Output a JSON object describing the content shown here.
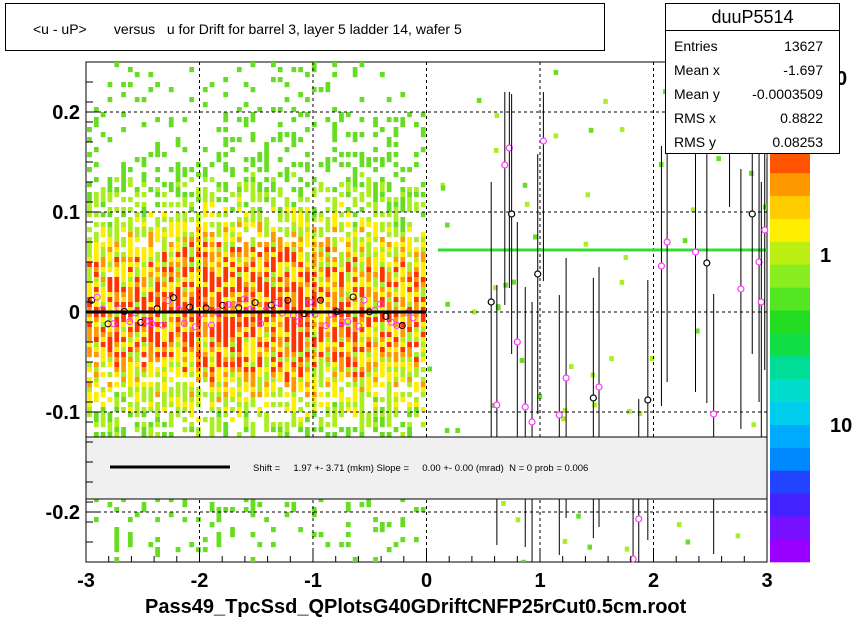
{
  "title": "<u - uP>       versus   u for Drift for barrel 3, layer 5 ladder 14, wafer 5",
  "stats": {
    "name": "duuP5514",
    "rows": [
      {
        "key": "Entries",
        "value": "13627"
      },
      {
        "key": "Mean x",
        "value": "-1.697"
      },
      {
        "key": "Mean y",
        "value": "-0.0003509"
      },
      {
        "key": "RMS x",
        "value": "0.8822"
      },
      {
        "key": "RMS y",
        "value": "0.08253"
      }
    ]
  },
  "fit_text": "Shift =     1.97 +- 3.71 (mkm) Slope =     0.00 +- 0.00 (mrad)  N = 0 prob = 0.006",
  "x_axis_title": "Pass49_TpcSsd_QPlotsG40GDriftCNFP25rCut0.5cm.root",
  "colors": {
    "fit_line": "#000000",
    "mean_line": "#33dd33",
    "grid": "#000000",
    "legend_bg": "#f0f0f0"
  },
  "chart_data": {
    "type": "heatmap",
    "xlim": [
      -3,
      3
    ],
    "ylim": [
      -0.25,
      0.25
    ],
    "x_ticks": [
      "-3",
      "-2",
      "-1",
      "0",
      "1",
      "2",
      "3"
    ],
    "x_tick_values": [
      -3,
      -2,
      -1,
      0,
      1,
      2,
      3
    ],
    "y_ticks": [
      "0.2",
      "0.1",
      "0",
      "-0.1",
      "-0.2"
    ],
    "y_tick_values": [
      0.2,
      0.1,
      0,
      -0.1,
      -0.2
    ],
    "grid": true,
    "colorbar_labels": [
      "0",
      "1",
      "10"
    ],
    "fit_line": {
      "x": [
        -3,
        0
      ],
      "y": [
        0.0,
        0.0
      ]
    },
    "mean_line": {
      "x": [
        0.1,
        3
      ],
      "y": [
        0.062,
        0.062
      ]
    },
    "profile_points_right": [
      {
        "x": 0.57,
        "y": 0.01
      },
      {
        "x": 0.62,
        "y": -0.093
      },
      {
        "x": 0.69,
        "y": 0.147
      },
      {
        "x": 0.73,
        "y": 0.164
      },
      {
        "x": 0.75,
        "y": 0.098
      },
      {
        "x": 0.8,
        "y": -0.03
      },
      {
        "x": 0.87,
        "y": -0.095
      },
      {
        "x": 0.93,
        "y": -0.11
      },
      {
        "x": 0.98,
        "y": 0.038
      },
      {
        "x": 1.03,
        "y": 0.171
      },
      {
        "x": 1.17,
        "y": -0.103
      },
      {
        "x": 1.23,
        "y": -0.066
      },
      {
        "x": 1.47,
        "y": -0.086
      },
      {
        "x": 1.52,
        "y": -0.075
      },
      {
        "x": 1.82,
        "y": -0.247
      },
      {
        "x": 1.87,
        "y": -0.207
      },
      {
        "x": 1.95,
        "y": -0.088
      },
      {
        "x": 2.07,
        "y": 0.046
      },
      {
        "x": 2.12,
        "y": 0.07
      },
      {
        "x": 2.37,
        "y": 0.06
      },
      {
        "x": 2.47,
        "y": 0.049
      },
      {
        "x": 2.53,
        "y": -0.102
      },
      {
        "x": 2.67,
        "y": 0.245
      },
      {
        "x": 2.77,
        "y": 0.023
      },
      {
        "x": 2.87,
        "y": 0.098
      },
      {
        "x": 2.93,
        "y": 0.05
      },
      {
        "x": 2.95,
        "y": 0.01
      },
      {
        "x": 2.98,
        "y": 0.082
      }
    ]
  }
}
